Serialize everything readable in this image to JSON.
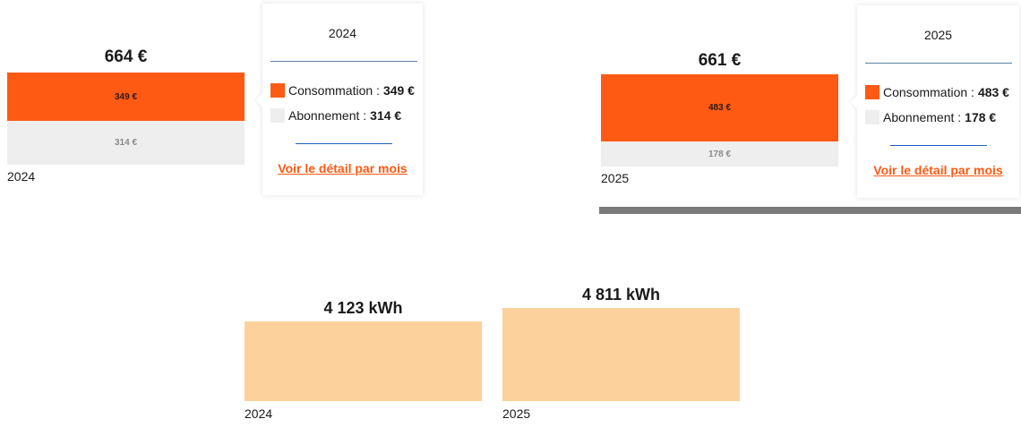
{
  "cost_panels": [
    {
      "year": "2024",
      "total": "664 €",
      "consommation_label": "349 €",
      "abonnement_label": "314 €",
      "tooltip": {
        "title": "2024",
        "consommation_text": "Consommation :",
        "consommation_value": "349 €",
        "abonnement_text": "Abonnement :",
        "abonnement_value": "314 €",
        "link": "Voir le détail par mois"
      }
    },
    {
      "year": "2025",
      "total": "661 €",
      "consommation_label": "483 €",
      "abonnement_label": "178 €",
      "tooltip": {
        "title": "2025",
        "consommation_text": "Consommation :",
        "consommation_value": "483 €",
        "abonnement_text": "Abonnement :",
        "abonnement_value": "178 €",
        "link": "Voir le détail par mois"
      }
    }
  ],
  "energy": {
    "bars": [
      {
        "year": "2024",
        "label": "4 123 kWh"
      },
      {
        "year": "2025",
        "label": "4 811 kWh"
      }
    ]
  },
  "colors": {
    "consommation": "#ff5a14",
    "abonnement": "#eeeeee",
    "energy_bar": "#fdd19c",
    "link": "#ff5a14"
  },
  "chart_data": [
    {
      "type": "bar",
      "stacked": true,
      "categories": [
        "2024"
      ],
      "series": [
        {
          "name": "Consommation",
          "values": [
            349
          ]
        },
        {
          "name": "Abonnement",
          "values": [
            314
          ]
        }
      ],
      "totals": [
        664
      ],
      "unit": "€"
    },
    {
      "type": "bar",
      "stacked": true,
      "categories": [
        "2025"
      ],
      "series": [
        {
          "name": "Consommation",
          "values": [
            483
          ]
        },
        {
          "name": "Abonnement",
          "values": [
            178
          ]
        }
      ],
      "totals": [
        661
      ],
      "unit": "€"
    },
    {
      "type": "bar",
      "categories": [
        "2024",
        "2025"
      ],
      "values": [
        4123,
        4811
      ],
      "unit": "kWh"
    }
  ]
}
